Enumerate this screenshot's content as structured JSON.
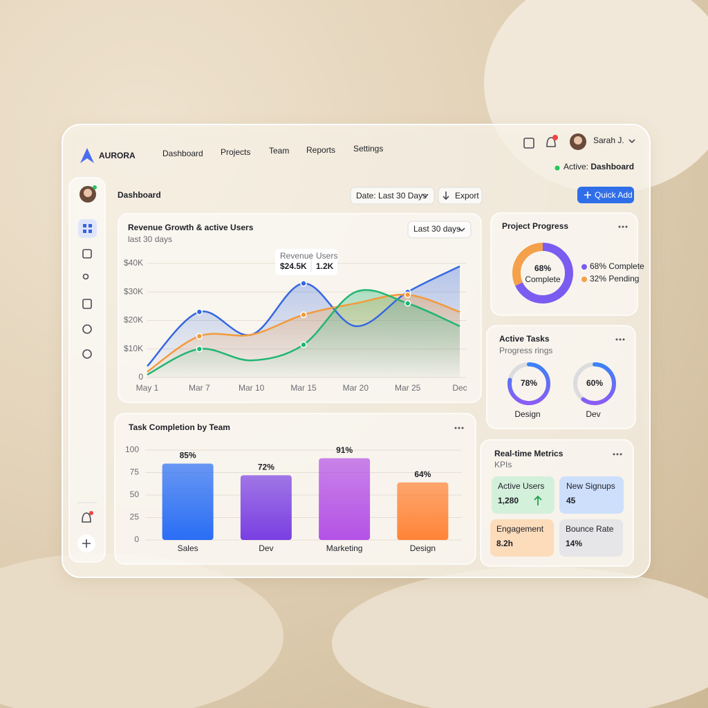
{
  "header": {
    "brand": "AURORA",
    "nav": [
      "Dashboard",
      "Projects",
      "Team",
      "Reports",
      "Settings"
    ],
    "user": "Sarah J.",
    "status_label": "Active:",
    "status_value": "Dashboard"
  },
  "toolbar": {
    "title": "Dashboard",
    "date_label": "Date:",
    "date_value": "Last 30 Days",
    "export": "Export",
    "quick_add": "Quick Add"
  },
  "chart_data": [
    {
      "type": "line",
      "title": "Revenue Growth & active Users",
      "subtitle": "last 30 days",
      "range_selector": "Last 30 days",
      "categories": [
        "May 1",
        "Mar 7",
        "Mar 10",
        "Mar 15",
        "Mar 20",
        "Mar 25",
        "Dec"
      ],
      "series": [
        {
          "color": "#3568e0",
          "values": [
            4000,
            23000,
            15000,
            33000,
            18000,
            30000,
            39000
          ]
        },
        {
          "color": "#f39a3b",
          "values": [
            2000,
            14500,
            15000,
            22000,
            26000,
            29000,
            23000
          ]
        },
        {
          "color": "#22b573",
          "values": [
            1000,
            10000,
            6000,
            11500,
            30000,
            26000,
            18000
          ]
        }
      ],
      "ylim": [
        0,
        40000
      ],
      "yticks": [
        0,
        {
          "value": 10000,
          "label": "$10K"
        },
        {
          "value": 20000,
          "label": "$20K"
        },
        {
          "value": 30000,
          "label": "$30K"
        },
        {
          "value": 40000,
          "label": "$40K"
        }
      ],
      "grid": true,
      "tooltip": {
        "labels": [
          "Revenue",
          "Users"
        ],
        "values": [
          "$24.5K",
          "1.2K"
        ]
      }
    },
    {
      "type": "bar",
      "title": "Task Completion by Team",
      "categories": [
        "Sales",
        "Dev",
        "Marketing",
        "Design"
      ],
      "values": [
        85,
        72,
        91,
        64
      ],
      "value_labels": [
        "85%",
        "72%",
        "91%",
        "64%"
      ],
      "colors": [
        "#2a6ef5",
        "#7a3fe2",
        "#b452e6",
        "#ff8437"
      ],
      "ylim": [
        0,
        100
      ],
      "yticks": [
        0,
        25,
        50,
        75,
        100
      ],
      "grid": true
    },
    {
      "type": "donut",
      "title": "Project Progress",
      "categories": [
        "Complete",
        "Pending"
      ],
      "values": [
        68,
        32
      ],
      "value_labels": [
        "68%",
        "32%"
      ],
      "colors": [
        "#7b5cf0",
        "#f5a04a"
      ]
    },
    {
      "type": "rings",
      "title": "Active Tasks",
      "subtitle": "Progress rings",
      "categories": [
        "Design",
        "Dev"
      ],
      "values": [
        78,
        60
      ],
      "value_labels": [
        "78%",
        "60%"
      ],
      "color": "#8b5cf6"
    }
  ],
  "metrics": {
    "title": "Real-time Metrics",
    "subtitle": "KPIs",
    "tiles": [
      {
        "label": "Active Users",
        "value": "1,280"
      },
      {
        "label": "New Signups",
        "value": "45"
      },
      {
        "label": "Engagement",
        "value": "8.2h"
      },
      {
        "label": "Bounce Rate",
        "value": "14%"
      }
    ]
  }
}
